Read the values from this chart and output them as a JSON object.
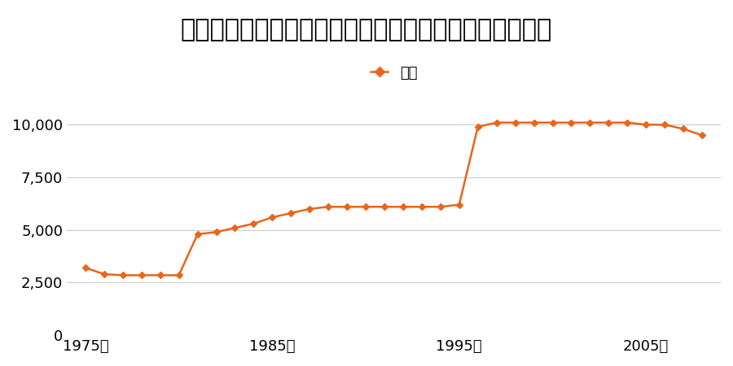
{
  "title": "北海道上磯郡上磯町字押上１０番３ほか１筆の地価推移",
  "legend_label": "価格",
  "years": [
    1975,
    1976,
    1977,
    1978,
    1979,
    1980,
    1981,
    1982,
    1983,
    1984,
    1985,
    1986,
    1987,
    1988,
    1989,
    1990,
    1991,
    1992,
    1993,
    1994,
    1995,
    1996,
    1997,
    1998,
    1999,
    2000,
    2001,
    2002,
    2003,
    2004,
    2005,
    2006,
    2007,
    2008
  ],
  "values": [
    3200,
    2900,
    2850,
    2850,
    2850,
    2850,
    4800,
    4900,
    5100,
    5300,
    5600,
    5800,
    6000,
    6100,
    6100,
    6100,
    6100,
    6100,
    6100,
    6100,
    6200,
    9900,
    10100,
    10100,
    10100,
    10100,
    10100,
    10100,
    10100,
    10100,
    10000,
    10000,
    9800,
    9500
  ],
  "line_color": "#E8661A",
  "marker": "D",
  "marker_size": 4,
  "line_width": 1.8,
  "ylim": [
    0,
    12000
  ],
  "yticks": [
    0,
    2500,
    5000,
    7500,
    10000
  ],
  "xtick_positions": [
    1975,
    1985,
    1995,
    2005
  ],
  "xtick_labels": [
    "1975年",
    "1985年",
    "1995年",
    "2005年"
  ],
  "background_color": "#ffffff",
  "grid_color": "#cccccc",
  "title_fontsize": 22,
  "legend_fontsize": 13,
  "tick_fontsize": 13
}
